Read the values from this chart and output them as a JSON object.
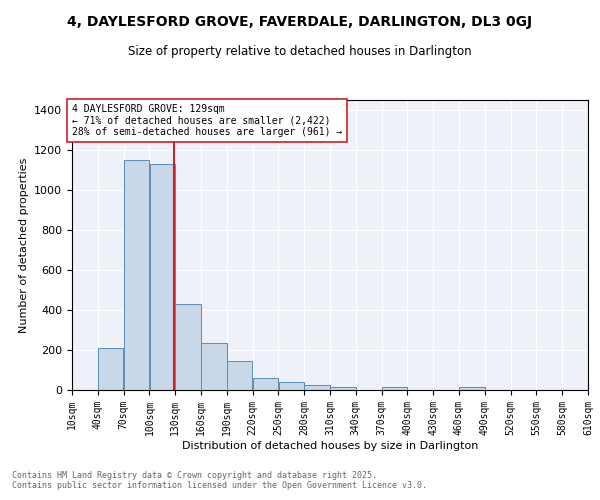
{
  "title": "4, DAYLESFORD GROVE, FAVERDALE, DARLINGTON, DL3 0GJ",
  "subtitle": "Size of property relative to detached houses in Darlington",
  "xlabel": "Distribution of detached houses by size in Darlington",
  "ylabel": "Number of detached properties",
  "bar_color": "#c8d8e8",
  "bar_edge_color": "#5b8db8",
  "background_color": "#eef2f8",
  "grid_color": "white",
  "vline_x": 129,
  "vline_color": "#cc2222",
  "annotation_text": "4 DAYLESFORD GROVE: 129sqm\n← 71% of detached houses are smaller (2,422)\n28% of semi-detached houses are larger (961) →",
  "annotation_box_color": "white",
  "annotation_box_edge": "#cc2222",
  "bins": [
    10,
    40,
    70,
    100,
    130,
    160,
    190,
    220,
    250,
    280,
    310,
    340,
    370,
    400,
    430,
    460,
    490,
    520,
    550,
    580,
    610
  ],
  "counts": [
    0,
    210,
    1150,
    1130,
    430,
    235,
    145,
    60,
    40,
    25,
    15,
    0,
    15,
    0,
    0,
    15,
    0,
    0,
    0,
    0
  ],
  "ylim": [
    0,
    1450
  ],
  "yticks": [
    0,
    200,
    400,
    600,
    800,
    1000,
    1200,
    1400
  ],
  "footer_text": "Contains HM Land Registry data © Crown copyright and database right 2025.\nContains public sector information licensed under the Open Government Licence v3.0.",
  "tick_labels": [
    "10sqm",
    "40sqm",
    "70sqm",
    "100sqm",
    "130sqm",
    "160sqm",
    "190sqm",
    "220sqm",
    "250sqm",
    "280sqm",
    "310sqm",
    "340sqm",
    "370sqm",
    "400sqm",
    "430sqm",
    "460sqm",
    "490sqm",
    "520sqm",
    "550sqm",
    "580sqm",
    "610sqm"
  ]
}
